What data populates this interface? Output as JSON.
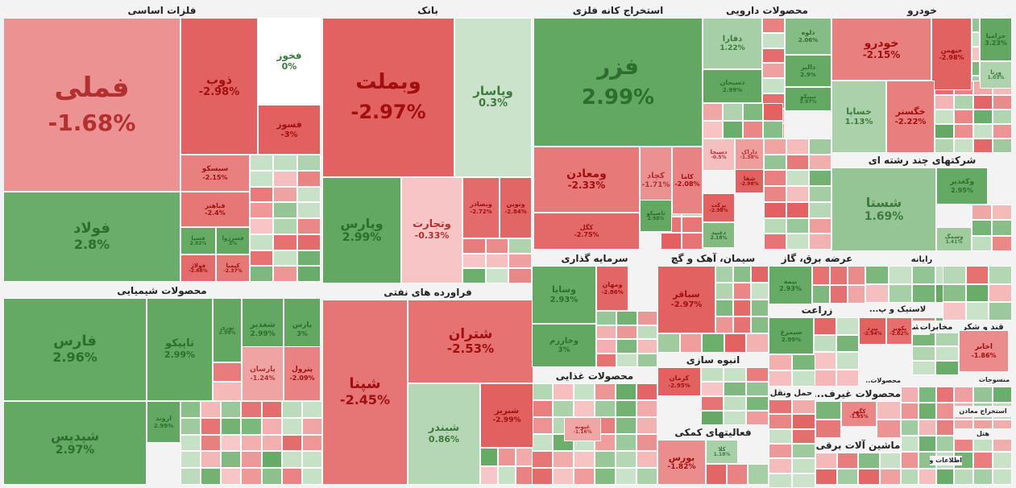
{
  "chart_data": {
    "type": "treemap",
    "title": "",
    "color_scale": {
      "negative": "#e05c5c",
      "neutral": "#ffffff",
      "positive": "#5fa15f"
    },
    "sectors": [
      {
        "name": "فلزات اساسی",
        "items": [
          {
            "name": "فملی",
            "change": -1.68
          },
          {
            "name": "فولاد",
            "change": 2.8
          },
          {
            "name": "ذوب",
            "change": -2.98
          },
          {
            "name": "فخوز",
            "change": 0
          },
          {
            "name": "فسوز",
            "change": -3
          },
          {
            "name": "سیسکو",
            "change": -2.15
          },
          {
            "name": "فباهنر",
            "change": -2.4
          },
          {
            "name": "فسپا",
            "change": 2.92
          },
          {
            "name": "فسرزوا",
            "change": 3
          },
          {
            "name": "فولاژ",
            "change": -2.68
          },
          {
            "name": "کیمیا",
            "change": -2.37
          }
        ]
      },
      {
        "name": "بانک",
        "items": [
          {
            "name": "وبملت",
            "change": -2.97
          },
          {
            "name": "وپاسار",
            "change": 0.3
          },
          {
            "name": "وپارس",
            "change": 2.99
          },
          {
            "name": "وتجارت",
            "change": -0.33
          },
          {
            "name": "وبصادر",
            "change": -2.72
          },
          {
            "name": "ونوین",
            "change": -2.84
          }
        ]
      },
      {
        "name": "استخراج کانه فلزی",
        "items": [
          {
            "name": "فزر",
            "change": 2.99
          },
          {
            "name": "ومعادن",
            "change": -2.33
          },
          {
            "name": "کچاد",
            "change": -1.71
          },
          {
            "name": "کاما",
            "change": -2.08
          },
          {
            "name": "کگل",
            "change": -2.75
          },
          {
            "name": "تاصیکو",
            "change": 2.98
          }
        ]
      },
      {
        "name": "محصولات دارویی",
        "items": [
          {
            "name": "دفارا",
            "change": 1.22
          },
          {
            "name": "دلوه",
            "change": 2.06
          },
          {
            "name": "دالبر",
            "change": 2.9
          },
          {
            "name": "دسبحان",
            "change": 2.99
          },
          {
            "name": "تیپیکو",
            "change": 2.97
          },
          {
            "name": "دسیجا",
            "change": -0.5
          },
          {
            "name": "داراک",
            "change": -1.38
          },
          {
            "name": "شفا",
            "change": -2.98
          },
          {
            "name": "برکت",
            "change": -2.98
          },
          {
            "name": "دعبید",
            "change": 2.18
          }
        ]
      },
      {
        "name": "خودرو",
        "items": [
          {
            "name": "خودرو",
            "change": -2.15
          },
          {
            "name": "خیهمن",
            "change": -2.98
          },
          {
            "name": "خزامیا",
            "change": 3.23
          },
          {
            "name": "ورنا",
            "change": 1.03
          },
          {
            "name": "خساپا",
            "change": 1.13
          },
          {
            "name": "خگستر",
            "change": -2.22
          }
        ]
      },
      {
        "name": "شرکتهای چند رشته ای",
        "items": [
          {
            "name": "شستا",
            "change": 1.69
          },
          {
            "name": "وکغدیر",
            "change": 2.95
          },
          {
            "name": "وسمگ",
            "change": 1.41
          }
        ]
      },
      {
        "name": "محصولات شیمیایی",
        "items": [
          {
            "name": "فارس",
            "change": 2.96
          },
          {
            "name": "شپدیس",
            "change": 2.97
          },
          {
            "name": "تاپیکو",
            "change": 2.99
          },
          {
            "name": "نوری",
            "change": 2.99
          },
          {
            "name": "شغدیر",
            "change": 2.99
          },
          {
            "name": "پارس",
            "change": 3
          },
          {
            "name": "پارسان",
            "change": -1.24
          },
          {
            "name": "پترول",
            "change": -2.09
          },
          {
            "name": "اروند",
            "change": 2.99
          }
        ]
      },
      {
        "name": "فراورده های نفتی",
        "items": [
          {
            "name": "شتران",
            "change": -2.53
          },
          {
            "name": "شپنا",
            "change": -2.45
          },
          {
            "name": "شبندر",
            "change": 0.86
          },
          {
            "name": "شبریز",
            "change": -2.99
          }
        ]
      },
      {
        "name": "سرمایه گذاری",
        "items": [
          {
            "name": "وسایا",
            "change": 2.93
          },
          {
            "name": "وخارزم",
            "change": 3
          },
          {
            "name": "ومهان",
            "change": -2.86
          }
        ]
      },
      {
        "name": "سیمان، آهک و گچ",
        "items": [
          {
            "name": "سباقر",
            "change": -2.97
          }
        ]
      },
      {
        "name": "عرضه برق، گاز",
        "items": [
          {
            "name": "بیمه",
            "change": 2.93
          }
        ]
      },
      {
        "name": "محصولات غذایی",
        "items": [
          {
            "name": "غپونه",
            "change": -1.16
          }
        ]
      },
      {
        "name": "انبوه سازی",
        "items": [
          {
            "name": "کرمان",
            "change": -2.95
          }
        ]
      },
      {
        "name": "فعالیتهای کمکی",
        "items": [
          {
            "name": "بورس",
            "change": -1.82
          },
          {
            "name": "کلا",
            "change": 1.18
          }
        ]
      },
      {
        "name": "زراعت",
        "items": [
          {
            "name": "سیمرغ",
            "change": 2.99
          }
        ]
      },
      {
        "name": "لاستیک و پ...",
        "items": [
          {
            "name": "پیزد",
            "change": -2.94
          },
          {
            "name": "پکویر",
            "change": -2.62
          }
        ]
      },
      {
        "name": "ماشین آلات",
        "items": [
          {
            "name": "اخابر",
            "change": -1.86
          }
        ]
      },
      {
        "name": "محصولات غیرف...",
        "items": [
          {
            "name": "کگهر",
            "change": -1.95
          }
        ]
      },
      {
        "name": "رایانه",
        "items": []
      },
      {
        "name": "مخابرات",
        "items": []
      },
      {
        "name": "قند و شکر",
        "items": []
      },
      {
        "name": "حمل ونقل",
        "items": []
      },
      {
        "name": "ماشین آلات برقی",
        "items": []
      },
      {
        "name": "هتل",
        "items": []
      },
      {
        "name": "اطلاعات و ارتبا...",
        "items": []
      },
      {
        "name": "استخراج معادن",
        "items": []
      },
      {
        "name": "محصولات...",
        "items": []
      },
      {
        "name": "منسوجات",
        "items": []
      }
    ]
  }
}
